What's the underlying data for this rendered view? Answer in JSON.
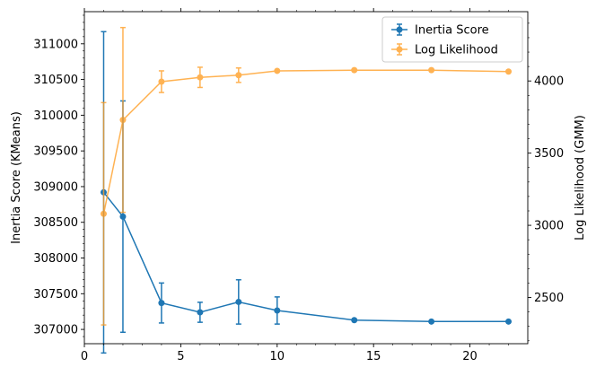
{
  "chart_data": {
    "type": "line",
    "title": "",
    "xlabel": "",
    "ylabel_left": "Inertia Score (KMeans)",
    "ylabel_right": "Log Likelihood (GMM)",
    "xlim": [
      0,
      23
    ],
    "ylim_left": [
      306800,
      311450
    ],
    "ylim_right": [
      2180,
      4480
    ],
    "x_ticks": [
      0,
      5,
      10,
      15,
      20
    ],
    "y_ticks_left": [
      307000,
      307500,
      308000,
      308500,
      309000,
      309500,
      310000,
      310500,
      311000
    ],
    "y_ticks_right": [
      2500,
      3000,
      3500,
      4000
    ],
    "grid": false,
    "legend_position": "top-right",
    "series": [
      {
        "name": "Inertia Score",
        "axis": "left",
        "color": "#1f77b4",
        "x": [
          1,
          2,
          4,
          6,
          8,
          10,
          14,
          18,
          22
        ],
        "y": [
          308920,
          308580,
          307370,
          307240,
          307385,
          307265,
          307130,
          307110,
          307110
        ],
        "err": [
          2250,
          1620,
          280,
          140,
          310,
          190,
          0,
          0,
          0
        ]
      },
      {
        "name": "Log Likelihood",
        "axis": "right",
        "color": "#ff9f27",
        "x": [
          1,
          2,
          4,
          6,
          8,
          10,
          14,
          18,
          22
        ],
        "y": [
          3080,
          3730,
          3995,
          4025,
          4040,
          4070,
          4075,
          4075,
          4065
        ],
        "err": [
          770,
          640,
          75,
          70,
          50,
          0,
          0,
          0,
          0
        ]
      }
    ]
  }
}
